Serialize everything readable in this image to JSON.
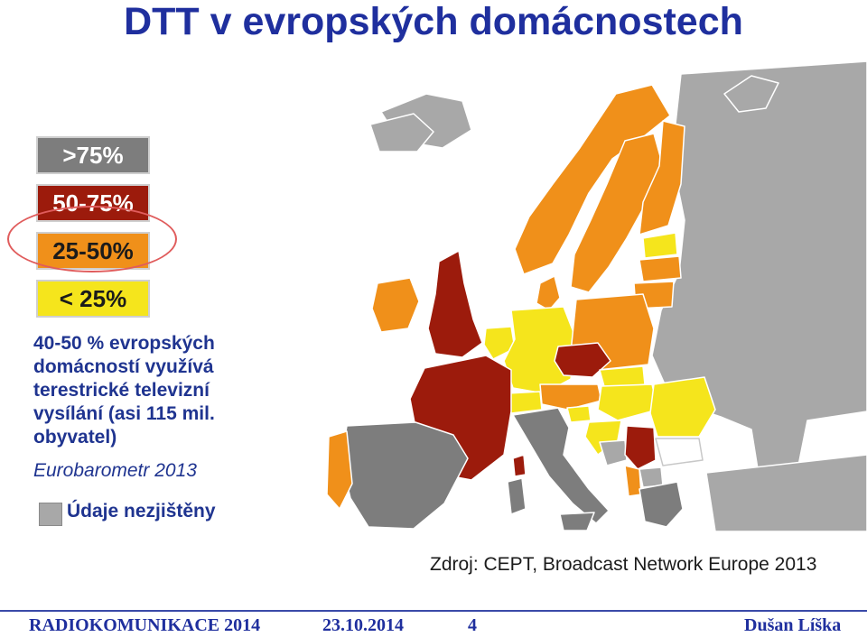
{
  "slide": {
    "title": "DTT v evropských domácnostech"
  },
  "legend": {
    "items": [
      {
        "label": ">75%",
        "color": "#7d7d7d"
      },
      {
        "label": "50-75%",
        "color": "#9c1b0c"
      },
      {
        "label": "25-50%",
        "color": "#f0901a"
      },
      {
        "label": "< 25%",
        "color": "#f5e51c"
      }
    ],
    "highlighted": "25-50%"
  },
  "description": {
    "lines": [
      "40-50 % evropských",
      "domácností využívá",
      "terestrické televizní",
      "vysílání (asi 115 mil.",
      "obyvatel)"
    ],
    "source_note": "Eurobarometr 2013"
  },
  "no_data": {
    "label": "Údaje nezjištěny",
    "color": "#a8a8a8"
  },
  "map": {
    "colors": {
      "over_75": "#7d7d7d",
      "50_75": "#9c1b0c",
      "25_50": "#f0901a",
      "under_25": "#f5e51c",
      "no_data": "#a8a8a8",
      "other": "#ffffff"
    }
  },
  "source": "Zdroj: CEPT, Broadcast Network Europe 2013",
  "footer": {
    "org": "RADIOKOMUNIKACE 2014",
    "date": "23.10.2014",
    "page": "4",
    "author": "Dušan Líška"
  }
}
